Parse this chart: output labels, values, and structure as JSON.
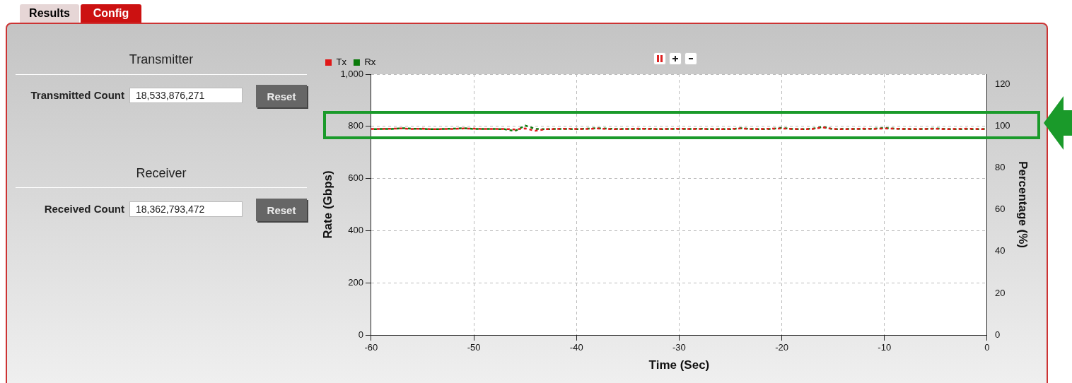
{
  "chart_data": {
    "type": "line",
    "xlabel": "Time (Sec)",
    "ylabel": "Rate (Gbps)",
    "y2label": "Percentage (%)",
    "annotations": [
      "Results",
      "Config",
      "Transmitter",
      "Transmitted Count",
      "18,533,876,271",
      "Reset",
      "Receiver",
      "Received Count",
      "18,362,793,472",
      "Reset"
    ],
    "x": [
      -60,
      -59,
      -58,
      -57,
      -56,
      -55,
      -54,
      -53,
      -52,
      -51,
      -50,
      -49,
      -48,
      -47,
      -46,
      -45,
      -44,
      -43,
      -42,
      -41,
      -40,
      -39,
      -38,
      -37,
      -36,
      -35,
      -34,
      -33,
      -32,
      -31,
      -30,
      -29,
      -28,
      -27,
      -26,
      -25,
      -24,
      -23,
      -22,
      -21,
      -20,
      -19,
      -18,
      -17,
      -16,
      -15,
      -14,
      -13,
      -12,
      -11,
      -10,
      -9,
      -8,
      -7,
      -6,
      -5,
      -4,
      -3,
      -2,
      -1,
      0
    ],
    "series": [
      {
        "name": "Tx",
        "color": "#e01818",
        "values": [
          790,
          790,
          791,
          792,
          790,
          791,
          789,
          790,
          790,
          792,
          791,
          790,
          790,
          790,
          788,
          792,
          783,
          789,
          790,
          791,
          790,
          790,
          792,
          790,
          789,
          790,
          791,
          790,
          790,
          790,
          791,
          790,
          790,
          790,
          789,
          790,
          792,
          790,
          790,
          791,
          792,
          790,
          789,
          790,
          796,
          790,
          789,
          790,
          791,
          790,
          792,
          791,
          790,
          790,
          790,
          791,
          789,
          790,
          791,
          790,
          789
        ]
      },
      {
        "name": "Rx",
        "color": "#0a7a0a",
        "values": [
          789,
          790,
          790,
          793,
          791,
          790,
          789,
          790,
          791,
          793,
          790,
          790,
          790,
          789,
          782,
          803,
          790,
          789,
          790,
          790,
          789,
          791,
          793,
          791,
          790,
          790,
          790,
          791,
          789,
          790,
          790,
          790,
          791,
          789,
          790,
          789,
          793,
          790,
          789,
          790,
          794,
          790,
          789,
          791,
          798,
          789,
          790,
          790,
          790,
          791,
          794,
          791,
          790,
          789,
          790,
          792,
          790,
          789,
          790,
          789,
          790
        ]
      }
    ],
    "xlim": [
      -60,
      0
    ],
    "xticks": [
      -60,
      -50,
      -40,
      -30,
      -20,
      -10,
      0
    ],
    "ylim": [
      0,
      1000
    ],
    "yticks": [
      0,
      200,
      400,
      600,
      {
        "value": 800,
        "label": "800"
      },
      {
        "value": 1000,
        "label": "1,000"
      }
    ],
    "y2lim": [
      0,
      125
    ],
    "y2ticks": [
      0,
      20,
      40,
      60,
      80,
      100,
      120
    ],
    "grid": true,
    "legend": "top left",
    "marker": "none",
    "line_style": "dashed"
  }
}
